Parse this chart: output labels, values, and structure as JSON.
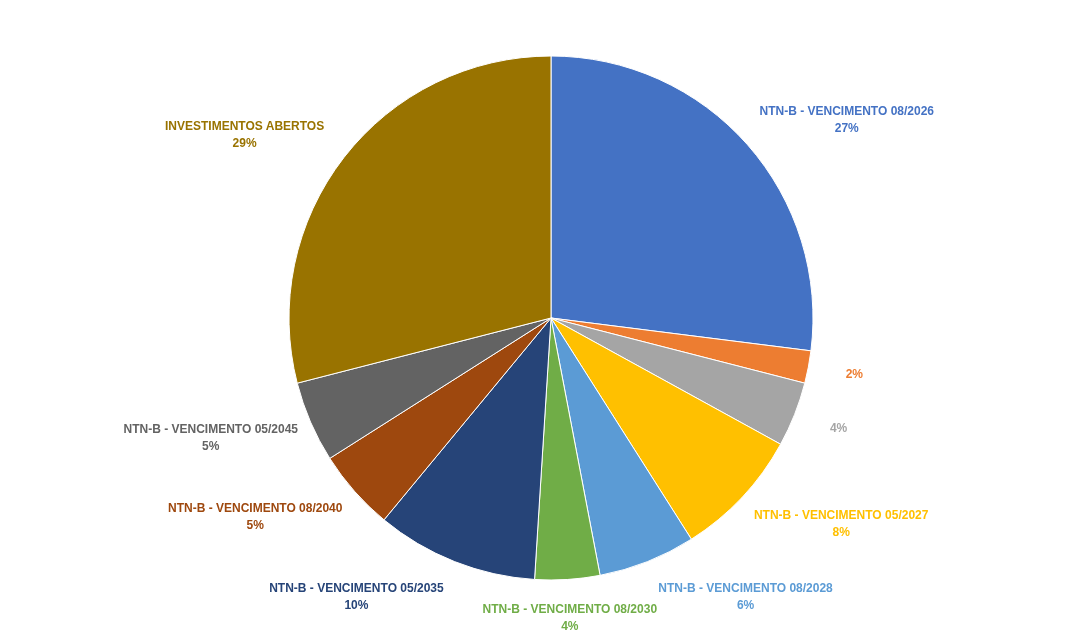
{
  "chart_data": {
    "type": "pie",
    "categories": [
      "NTN-B - VENCIMENTO 08/2026",
      null,
      null,
      "NTN-B - VENCIMENTO 05/2027",
      "NTN-B - VENCIMENTO 08/2028",
      "NTN-B - VENCIMENTO 08/2030",
      "NTN-B - VENCIMENTO 05/2035",
      "NTN-B - VENCIMENTO 08/2040",
      "NTN-B - VENCIMENTO 05/2045",
      "INVESTIMENTOS ABERTOS"
    ],
    "values": [
      27,
      2,
      4,
      8,
      6,
      4,
      10,
      5,
      5,
      29
    ],
    "value_labels": [
      "27%",
      "2%",
      "4%",
      "8%",
      "6%",
      "4%",
      "10%",
      "5%",
      "5%",
      "29%"
    ],
    "colors": [
      "#4472c4",
      "#ed7d31",
      "#a5a5a5",
      "#ffc000",
      "#5b9bd5",
      "#70ad47",
      "#264478",
      "#9e480e",
      "#636363",
      "#997300"
    ]
  }
}
